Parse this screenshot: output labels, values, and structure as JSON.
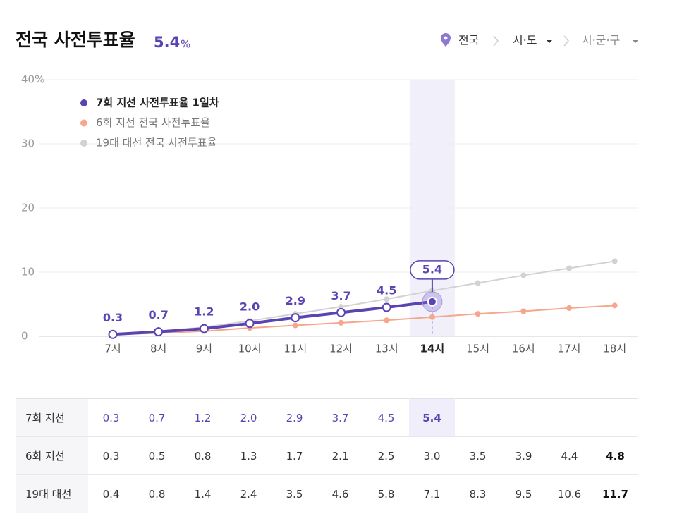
{
  "header": {
    "title": "전국 사전투표율",
    "value": "5.4",
    "unit": "%"
  },
  "breadcrumb": [
    "전국",
    "시·도",
    "시·군·구"
  ],
  "chart_data": {
    "type": "line",
    "categories": [
      "7시",
      "8시",
      "9시",
      "10시",
      "11시",
      "12시",
      "13시",
      "14시",
      "15시",
      "16시",
      "17시",
      "18시"
    ],
    "series": [
      {
        "name": "7회 지선 사전투표율 1일차",
        "color": "#5b44b2",
        "values": [
          0.3,
          0.7,
          1.2,
          2.0,
          2.9,
          3.7,
          4.5,
          5.4,
          null,
          null,
          null,
          null
        ],
        "value_labels": [
          "0.3",
          "0.7",
          "1.2",
          "2.0",
          "2.9",
          "3.7",
          "4.5",
          "5.4",
          null,
          null,
          null,
          null
        ]
      },
      {
        "name": "6회 지선 전국 사전투표율",
        "color": "#f5a68c",
        "values": [
          0.3,
          0.5,
          0.8,
          1.3,
          1.7,
          2.1,
          2.5,
          3.0,
          3.5,
          3.9,
          4.4,
          4.8
        ],
        "value_labels": [
          "0.3",
          "0.5",
          "0.8",
          "1.3",
          "1.7",
          "2.1",
          "2.5",
          "3.0",
          "3.5",
          "3.9",
          "4.4",
          "4.8"
        ]
      },
      {
        "name": "19대 대선 전국 사전투표율",
        "color": "#d2d2d2",
        "values": [
          0.4,
          0.8,
          1.4,
          2.4,
          3.5,
          4.6,
          5.8,
          7.1,
          8.3,
          9.5,
          10.6,
          11.7
        ],
        "value_labels": [
          "0.4",
          "0.8",
          "1.4",
          "2.4",
          "3.5",
          "4.6",
          "5.8",
          "7.1",
          "8.3",
          "9.5",
          "10.6",
          "11.7"
        ]
      }
    ],
    "ylim": [
      0,
      40
    ],
    "yticks": [
      0,
      10,
      20,
      30,
      {
        "value": 40,
        "label": "40%"
      }
    ],
    "grid": true
  },
  "table": {
    "row_labels": [
      "7회 지선",
      "6회 지선",
      "19대 대선"
    ]
  }
}
